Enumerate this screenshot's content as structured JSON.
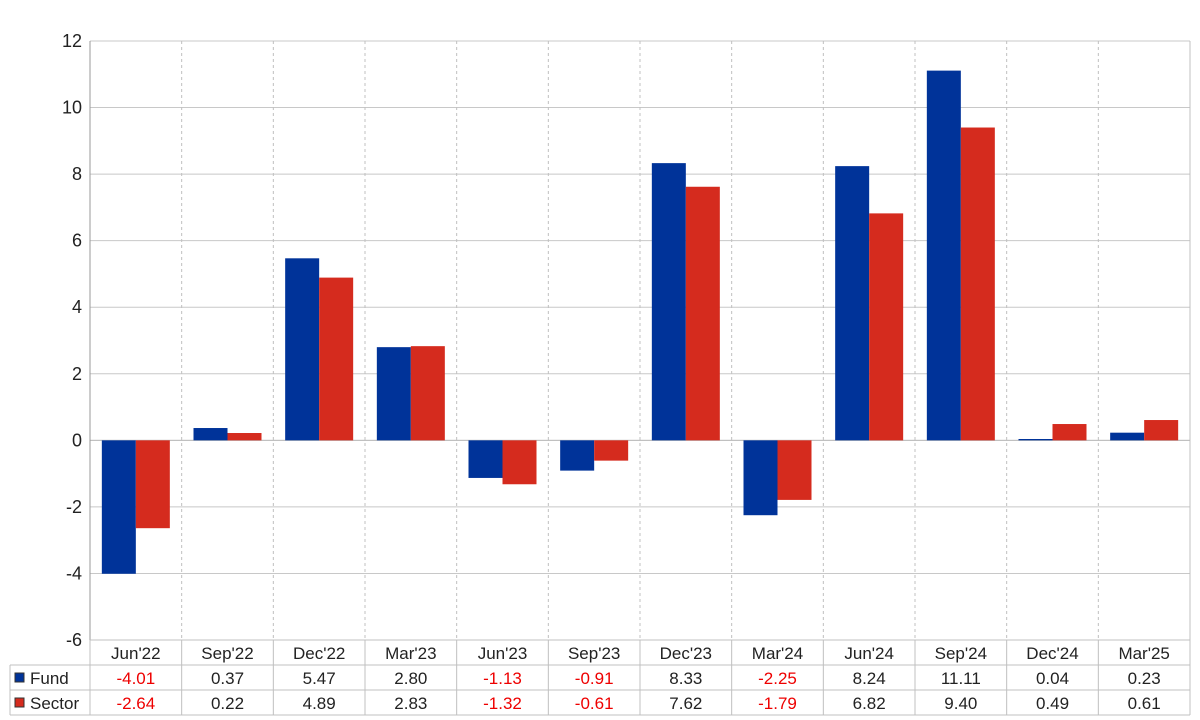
{
  "chart_data": {
    "type": "bar",
    "categories": [
      "Jun'22",
      "Sep'22",
      "Dec'22",
      "Mar'23",
      "Jun'23",
      "Sep'23",
      "Dec'23",
      "Mar'24",
      "Jun'24",
      "Sep'24",
      "Dec'24",
      "Mar'25"
    ],
    "series": [
      {
        "name": "Fund",
        "color": "#003399",
        "values": [
          -4.01,
          0.37,
          5.47,
          2.8,
          -1.13,
          -0.91,
          8.33,
          -2.25,
          8.24,
          11.11,
          0.04,
          0.23
        ],
        "labels": [
          "-4.01",
          "0.37",
          "5.47",
          "2.80",
          "-1.13",
          "-0.91",
          "8.33",
          "-2.25",
          "8.24",
          "11.11",
          "0.04",
          "0.23"
        ]
      },
      {
        "name": "Sector",
        "color": "#d52b1e",
        "values": [
          -2.64,
          0.22,
          4.89,
          2.83,
          -1.32,
          -0.61,
          7.62,
          -1.79,
          6.82,
          9.4,
          0.49,
          0.61
        ],
        "labels": [
          "-2.64",
          "0.22",
          "4.89",
          "2.83",
          "-1.32",
          "-0.61",
          "7.62",
          "-1.79",
          "6.82",
          "9.40",
          "0.49",
          "0.61"
        ]
      }
    ],
    "ylim": [
      -6,
      12
    ],
    "yticks": [
      "-6",
      "-4",
      "-2",
      "0",
      "2",
      "4",
      "6",
      "8",
      "10",
      "12"
    ],
    "grid": true,
    "legend": "data-table-left",
    "negative_color": "#ee0000",
    "positive_color": "#222222"
  }
}
